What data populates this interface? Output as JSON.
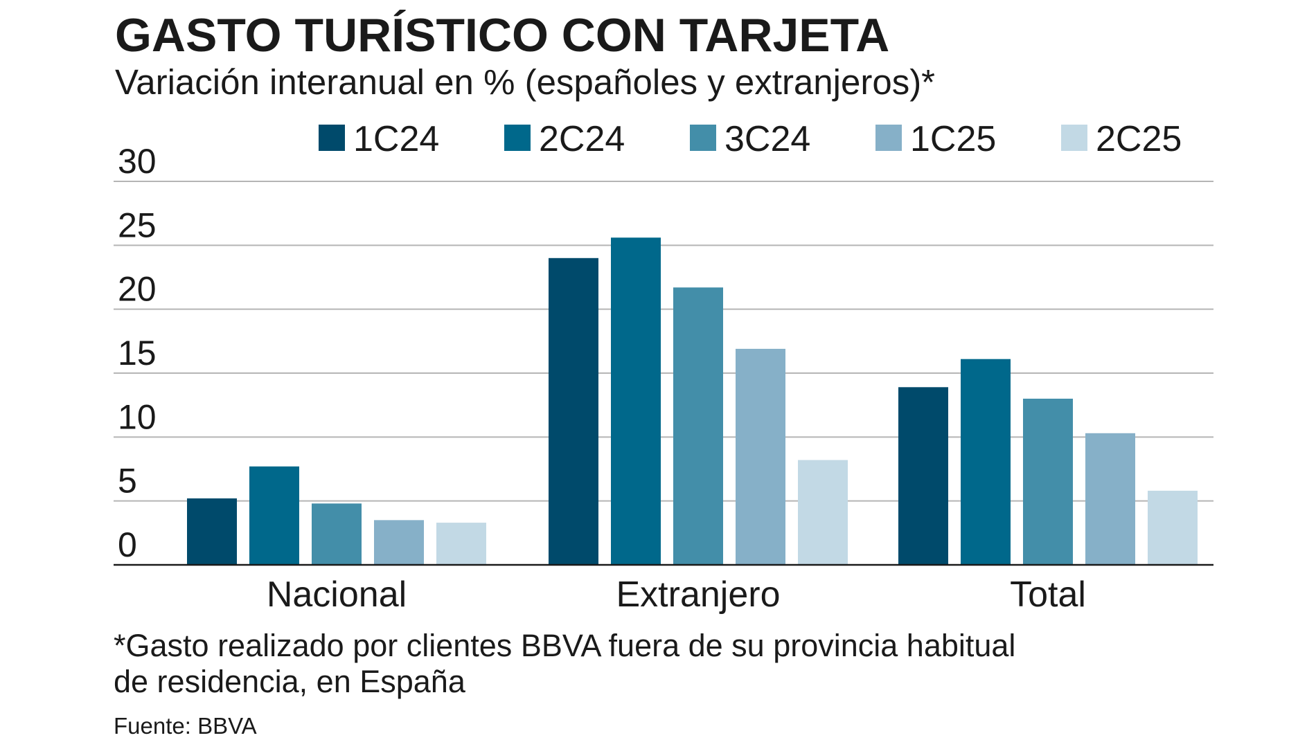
{
  "chart_data": {
    "type": "bar",
    "title": "GASTO TURÍSTICO CON TARJETA",
    "subtitle": "Variación interanual en % (españoles y extranjeros)*",
    "categories": [
      "Nacional",
      "Extranjero",
      "Total"
    ],
    "series": [
      {
        "name": "1C24",
        "color": "#004a6b",
        "values": [
          5.2,
          24.0,
          13.9
        ]
      },
      {
        "name": "2C24",
        "color": "#00688b",
        "values": [
          7.7,
          25.6,
          16.1
        ]
      },
      {
        "name": "3C24",
        "color": "#438ea9",
        "values": [
          4.8,
          21.7,
          13.0
        ]
      },
      {
        "name": "1C25",
        "color": "#86b0c8",
        "values": [
          3.5,
          16.9,
          10.3
        ]
      },
      {
        "name": "2C25",
        "color": "#c2d9e5",
        "values": [
          3.3,
          8.2,
          5.8
        ]
      }
    ],
    "ylim": [
      0,
      30
    ],
    "yticks": [
      0,
      5,
      10,
      15,
      20,
      25,
      30
    ],
    "ytick_labels": [
      "0",
      "5",
      "10",
      "15",
      "20",
      "25",
      "30"
    ],
    "grid": true,
    "legend_position": "top",
    "xlabel": "",
    "ylabel": ""
  },
  "footnote": {
    "line1": "*Gasto realizado por clientes BBVA fuera de su provincia habitual",
    "line2": "de residencia, en España"
  },
  "source": "Fuente: BBVA"
}
